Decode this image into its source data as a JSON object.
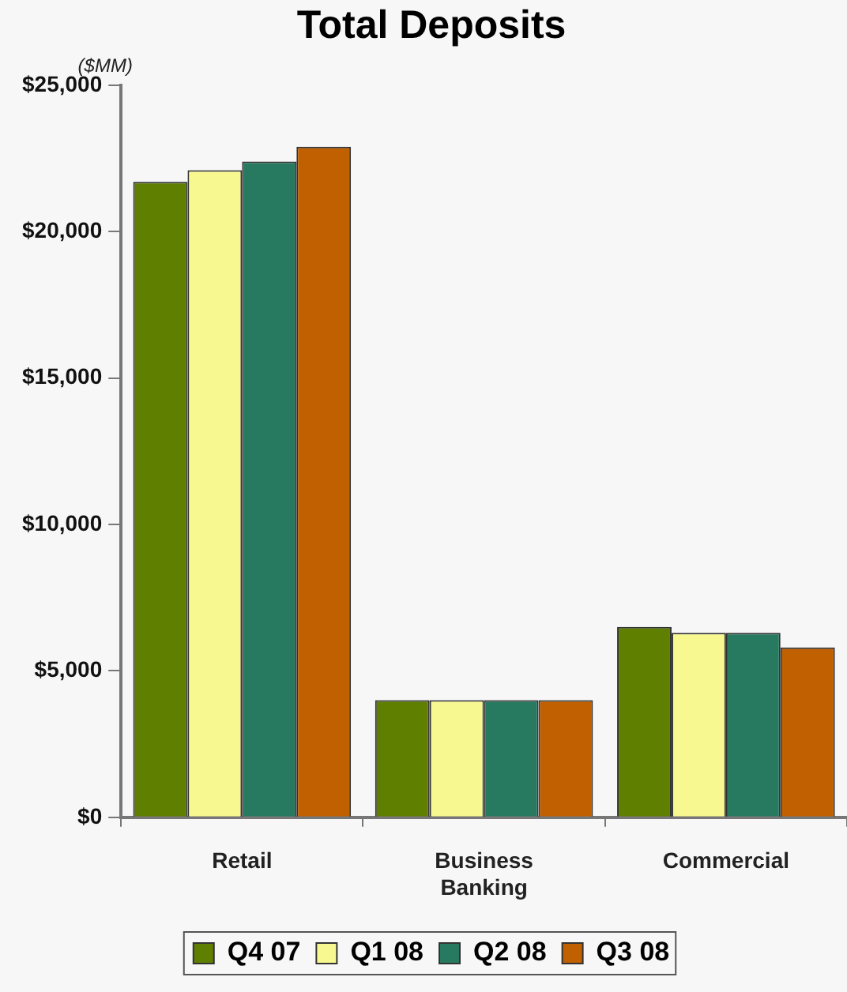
{
  "chart_data": {
    "type": "bar",
    "title": "Total Deposits",
    "annotations": [
      "($MM)"
    ],
    "categories": [
      "Retail",
      "Business Banking",
      "Commercial"
    ],
    "series": [
      {
        "name": "Q4 07",
        "color": "#5f7f00",
        "values": [
          21700,
          4000,
          6500
        ]
      },
      {
        "name": "Q1 08",
        "color": "#f8f890",
        "values": [
          22100,
          4000,
          6300
        ]
      },
      {
        "name": "Q2 08",
        "color": "#277a60",
        "values": [
          22400,
          4000,
          6300
        ]
      },
      {
        "name": "Q3 08",
        "color": "#c06000",
        "values": [
          22900,
          4000,
          5800
        ]
      }
    ],
    "ylim": [
      0,
      25000
    ],
    "yticks": [
      {
        "value": 0,
        "label": "$0"
      },
      {
        "value": 5000,
        "label": "$5,000"
      },
      {
        "value": 10000,
        "label": "$10,000"
      },
      {
        "value": 15000,
        "label": "$15,000"
      },
      {
        "value": 20000,
        "label": "$20,000"
      },
      {
        "value": 25000,
        "label": "$25,000"
      }
    ],
    "grid": false,
    "legend": "bottom"
  }
}
